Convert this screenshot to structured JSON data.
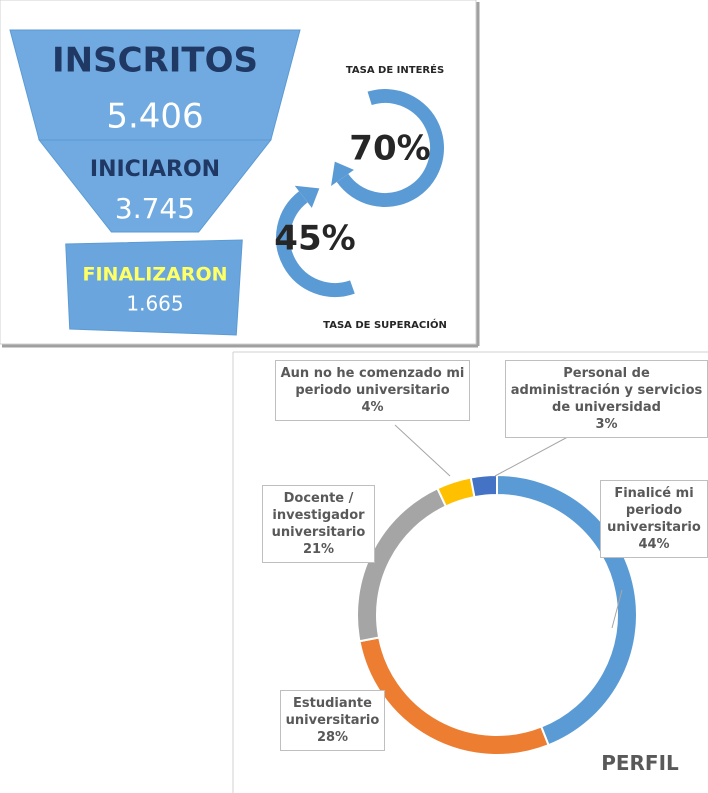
{
  "chart_data": [
    {
      "type": "funnel",
      "categories": [
        "INSCRITOS",
        "INICIARON",
        "FINALIZARON"
      ],
      "values": [
        5406,
        3745,
        1665
      ],
      "value_labels": [
        "5.406",
        "3.745",
        "1.665"
      ],
      "colors": [
        "#1f3864",
        "#1f3864",
        "#ffff66"
      ],
      "rates": [
        {
          "label": "TASA DE INTERÉS",
          "value": 70,
          "value_label": "70%"
        },
        {
          "label": "TASA DE SUPERACIÓN",
          "value": 45,
          "value_label": "45%"
        }
      ]
    },
    {
      "type": "donut",
      "title": "PERFIL",
      "categories": [
        "Finalicé mi periodo universitario",
        "Estudiante universitario",
        "Docente / investigador universitario",
        "Aun no he comenzado mi periodo universitario",
        "Personal de administración y servicios de universidad"
      ],
      "values": [
        44,
        28,
        21,
        4,
        3
      ],
      "value_labels": [
        "44%",
        "28%",
        "21%",
        "4%",
        "3%"
      ],
      "colors": [
        "#5b9bd5",
        "#ed7d31",
        "#a5a5a5",
        "#ffc000",
        "#4472c4"
      ]
    }
  ]
}
